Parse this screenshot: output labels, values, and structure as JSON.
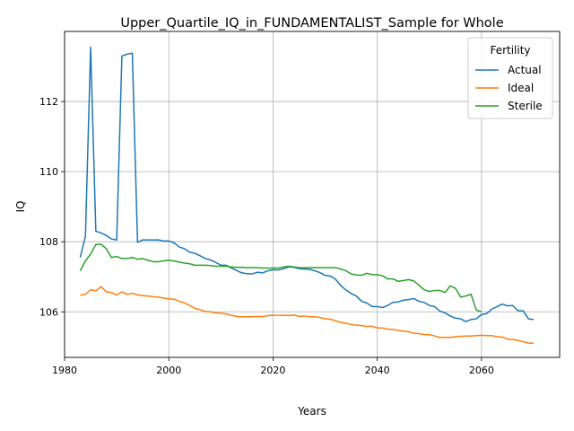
{
  "chart_data": {
    "type": "line",
    "title": "Upper_Quartile_IQ_in_FUNDAMENTALIST_Sample for Whole",
    "xlabel": "Years",
    "ylabel": "IQ",
    "xlim": [
      1980,
      2075
    ],
    "ylim": [
      104.7,
      114.0
    ],
    "xticks": [
      1980,
      2000,
      2020,
      2040,
      2060
    ],
    "yticks": [
      106,
      108,
      110,
      112
    ],
    "grid": true,
    "legend": {
      "title": "Fertility",
      "placement": "top-right"
    },
    "series": [
      {
        "name": "Actual",
        "color": "#1f77b4",
        "points": [
          [
            1983,
            107.55
          ],
          [
            1984,
            108.15
          ],
          [
            1985,
            113.55
          ],
          [
            1986,
            108.3
          ],
          [
            1987,
            108.25
          ],
          [
            1988,
            108.18
          ],
          [
            1989,
            108.08
          ],
          [
            1990,
            108.05
          ],
          [
            1991,
            113.3
          ],
          [
            1992,
            113.35
          ],
          [
            1993,
            113.38
          ],
          [
            1994,
            107.98
          ],
          [
            1995,
            108.05
          ],
          [
            1996,
            108.05
          ],
          [
            1997,
            108.05
          ],
          [
            1998,
            108.05
          ],
          [
            1999,
            108.02
          ],
          [
            2000,
            108.02
          ],
          [
            2001,
            107.97
          ],
          [
            2002,
            107.85
          ],
          [
            2003,
            107.8
          ],
          [
            2004,
            107.7
          ],
          [
            2005,
            107.67
          ],
          [
            2006,
            107.6
          ],
          [
            2007,
            107.52
          ],
          [
            2008,
            107.48
          ],
          [
            2009,
            107.41
          ],
          [
            2010,
            107.33
          ],
          [
            2011,
            107.33
          ],
          [
            2012,
            107.25
          ],
          [
            2013,
            107.18
          ],
          [
            2014,
            107.11
          ],
          [
            2015,
            107.09
          ],
          [
            2016,
            107.08
          ],
          [
            2017,
            107.13
          ],
          [
            2018,
            107.11
          ],
          [
            2019,
            107.17
          ],
          [
            2020,
            107.2
          ],
          [
            2021,
            107.19
          ],
          [
            2022,
            107.23
          ],
          [
            2023,
            107.28
          ],
          [
            2024,
            107.27
          ],
          [
            2025,
            107.23
          ],
          [
            2026,
            107.22
          ],
          [
            2027,
            107.21
          ],
          [
            2028,
            107.17
          ],
          [
            2029,
            107.12
          ],
          [
            2030,
            107.04
          ],
          [
            2031,
            107.02
          ],
          [
            2032,
            106.93
          ],
          [
            2033,
            106.75
          ],
          [
            2034,
            106.62
          ],
          [
            2035,
            106.52
          ],
          [
            2036,
            106.45
          ],
          [
            2037,
            106.3
          ],
          [
            2038,
            106.25
          ],
          [
            2039,
            106.15
          ],
          [
            2040,
            106.15
          ],
          [
            2041,
            106.12
          ],
          [
            2042,
            106.18
          ],
          [
            2043,
            106.27
          ],
          [
            2044,
            106.28
          ],
          [
            2045,
            106.33
          ],
          [
            2046,
            106.35
          ],
          [
            2047,
            106.38
          ],
          [
            2048,
            106.3
          ],
          [
            2049,
            106.27
          ],
          [
            2050,
            106.18
          ],
          [
            2051,
            106.15
          ],
          [
            2052,
            106.02
          ],
          [
            2053,
            105.97
          ],
          [
            2054,
            105.88
          ],
          [
            2055,
            105.82
          ],
          [
            2056,
            105.8
          ],
          [
            2057,
            105.72
          ],
          [
            2058,
            105.78
          ],
          [
            2059,
            105.8
          ],
          [
            2060,
            105.92
          ],
          [
            2061,
            105.95
          ],
          [
            2062,
            106.08
          ],
          [
            2063,
            106.15
          ],
          [
            2064,
            106.22
          ],
          [
            2065,
            106.17
          ],
          [
            2066,
            106.18
          ],
          [
            2067,
            106.03
          ],
          [
            2068,
            106.03
          ],
          [
            2069,
            105.8
          ],
          [
            2070,
            105.78
          ]
        ]
      },
      {
        "name": "Ideal",
        "color": "#ff7f0e",
        "points": [
          [
            1983,
            106.47
          ],
          [
            1984,
            106.5
          ],
          [
            1985,
            106.63
          ],
          [
            1986,
            106.6
          ],
          [
            1987,
            106.72
          ],
          [
            1988,
            106.57
          ],
          [
            1989,
            106.55
          ],
          [
            1990,
            106.48
          ],
          [
            1991,
            106.57
          ],
          [
            1992,
            106.5
          ],
          [
            1993,
            106.53
          ],
          [
            1994,
            106.48
          ],
          [
            1995,
            106.46
          ],
          [
            1996,
            106.45
          ],
          [
            1997,
            106.43
          ],
          [
            1998,
            106.42
          ],
          [
            1999,
            106.39
          ],
          [
            2000,
            106.37
          ],
          [
            2001,
            106.36
          ],
          [
            2002,
            106.3
          ],
          [
            2003,
            106.26
          ],
          [
            2004,
            106.18
          ],
          [
            2005,
            106.1
          ],
          [
            2006,
            106.06
          ],
          [
            2007,
            106.01
          ],
          [
            2008,
            106.0
          ],
          [
            2009,
            105.97
          ],
          [
            2010,
            105.96
          ],
          [
            2011,
            105.94
          ],
          [
            2012,
            105.9
          ],
          [
            2013,
            105.87
          ],
          [
            2014,
            105.86
          ],
          [
            2015,
            105.86
          ],
          [
            2016,
            105.86
          ],
          [
            2017,
            105.87
          ],
          [
            2018,
            105.86
          ],
          [
            2019,
            105.89
          ],
          [
            2020,
            105.9
          ],
          [
            2021,
            105.9
          ],
          [
            2022,
            105.9
          ],
          [
            2023,
            105.89
          ],
          [
            2024,
            105.91
          ],
          [
            2025,
            105.87
          ],
          [
            2026,
            105.88
          ],
          [
            2027,
            105.86
          ],
          [
            2028,
            105.86
          ],
          [
            2029,
            105.84
          ],
          [
            2030,
            105.8
          ],
          [
            2031,
            105.79
          ],
          [
            2032,
            105.74
          ],
          [
            2033,
            105.7
          ],
          [
            2034,
            105.67
          ],
          [
            2035,
            105.64
          ],
          [
            2036,
            105.62
          ],
          [
            2037,
            105.61
          ],
          [
            2038,
            105.58
          ],
          [
            2039,
            105.59
          ],
          [
            2040,
            105.54
          ],
          [
            2041,
            105.54
          ],
          [
            2042,
            105.5
          ],
          [
            2043,
            105.5
          ],
          [
            2044,
            105.47
          ],
          [
            2045,
            105.45
          ],
          [
            2046,
            105.43
          ],
          [
            2047,
            105.39
          ],
          [
            2048,
            105.38
          ],
          [
            2049,
            105.35
          ],
          [
            2050,
            105.35
          ],
          [
            2051,
            105.31
          ],
          [
            2052,
            105.27
          ],
          [
            2053,
            105.27
          ],
          [
            2054,
            105.27
          ],
          [
            2055,
            105.29
          ],
          [
            2056,
            105.3
          ],
          [
            2057,
            105.31
          ],
          [
            2058,
            105.31
          ],
          [
            2059,
            105.32
          ],
          [
            2060,
            105.33
          ],
          [
            2061,
            105.32
          ],
          [
            2062,
            105.32
          ],
          [
            2063,
            105.29
          ],
          [
            2064,
            105.28
          ],
          [
            2065,
            105.22
          ],
          [
            2066,
            105.21
          ],
          [
            2067,
            105.18
          ],
          [
            2068,
            105.15
          ],
          [
            2069,
            105.11
          ],
          [
            2070,
            105.1
          ]
        ]
      },
      {
        "name": "Sterile",
        "color": "#2ca02c",
        "points": [
          [
            1983,
            107.17
          ],
          [
            1984,
            107.45
          ],
          [
            1985,
            107.65
          ],
          [
            1986,
            107.92
          ],
          [
            1987,
            107.93
          ],
          [
            1988,
            107.8
          ],
          [
            1989,
            107.55
          ],
          [
            1990,
            107.58
          ],
          [
            1991,
            107.52
          ],
          [
            1992,
            107.52
          ],
          [
            1993,
            107.55
          ],
          [
            1994,
            107.5
          ],
          [
            1995,
            107.52
          ],
          [
            1996,
            107.47
          ],
          [
            1997,
            107.43
          ],
          [
            1998,
            107.43
          ],
          [
            1999,
            107.45
          ],
          [
            2000,
            107.47
          ],
          [
            2001,
            107.45
          ],
          [
            2002,
            107.42
          ],
          [
            2003,
            107.39
          ],
          [
            2004,
            107.37
          ],
          [
            2005,
            107.33
          ],
          [
            2006,
            107.33
          ],
          [
            2007,
            107.33
          ],
          [
            2008,
            107.32
          ],
          [
            2009,
            107.3
          ],
          [
            2010,
            107.3
          ],
          [
            2011,
            107.3
          ],
          [
            2012,
            107.28
          ],
          [
            2013,
            107.27
          ],
          [
            2014,
            107.27
          ],
          [
            2015,
            107.26
          ],
          [
            2016,
            107.26
          ],
          [
            2017,
            107.26
          ],
          [
            2018,
            107.25
          ],
          [
            2019,
            107.25
          ],
          [
            2020,
            107.25
          ],
          [
            2021,
            107.25
          ],
          [
            2022,
            107.28
          ],
          [
            2023,
            107.3
          ],
          [
            2024,
            107.28
          ],
          [
            2025,
            107.26
          ],
          [
            2026,
            107.26
          ],
          [
            2027,
            107.26
          ],
          [
            2028,
            107.26
          ],
          [
            2029,
            107.26
          ],
          [
            2030,
            107.26
          ],
          [
            2031,
            107.26
          ],
          [
            2032,
            107.26
          ],
          [
            2033,
            107.22
          ],
          [
            2034,
            107.17
          ],
          [
            2035,
            107.08
          ],
          [
            2036,
            107.05
          ],
          [
            2037,
            107.04
          ],
          [
            2038,
            107.1
          ],
          [
            2039,
            107.06
          ],
          [
            2040,
            107.06
          ],
          [
            2041,
            107.03
          ],
          [
            2042,
            106.94
          ],
          [
            2043,
            106.94
          ],
          [
            2044,
            106.87
          ],
          [
            2045,
            106.89
          ],
          [
            2046,
            106.92
          ],
          [
            2047,
            106.88
          ],
          [
            2048,
            106.76
          ],
          [
            2049,
            106.63
          ],
          [
            2050,
            106.58
          ],
          [
            2051,
            106.61
          ],
          [
            2052,
            106.61
          ],
          [
            2053,
            106.55
          ],
          [
            2054,
            106.74
          ],
          [
            2055,
            106.67
          ],
          [
            2056,
            106.42
          ],
          [
            2057,
            106.45
          ],
          [
            2058,
            106.5
          ],
          [
            2059,
            106.05
          ],
          [
            2060,
            106.0
          ]
        ]
      }
    ]
  }
}
